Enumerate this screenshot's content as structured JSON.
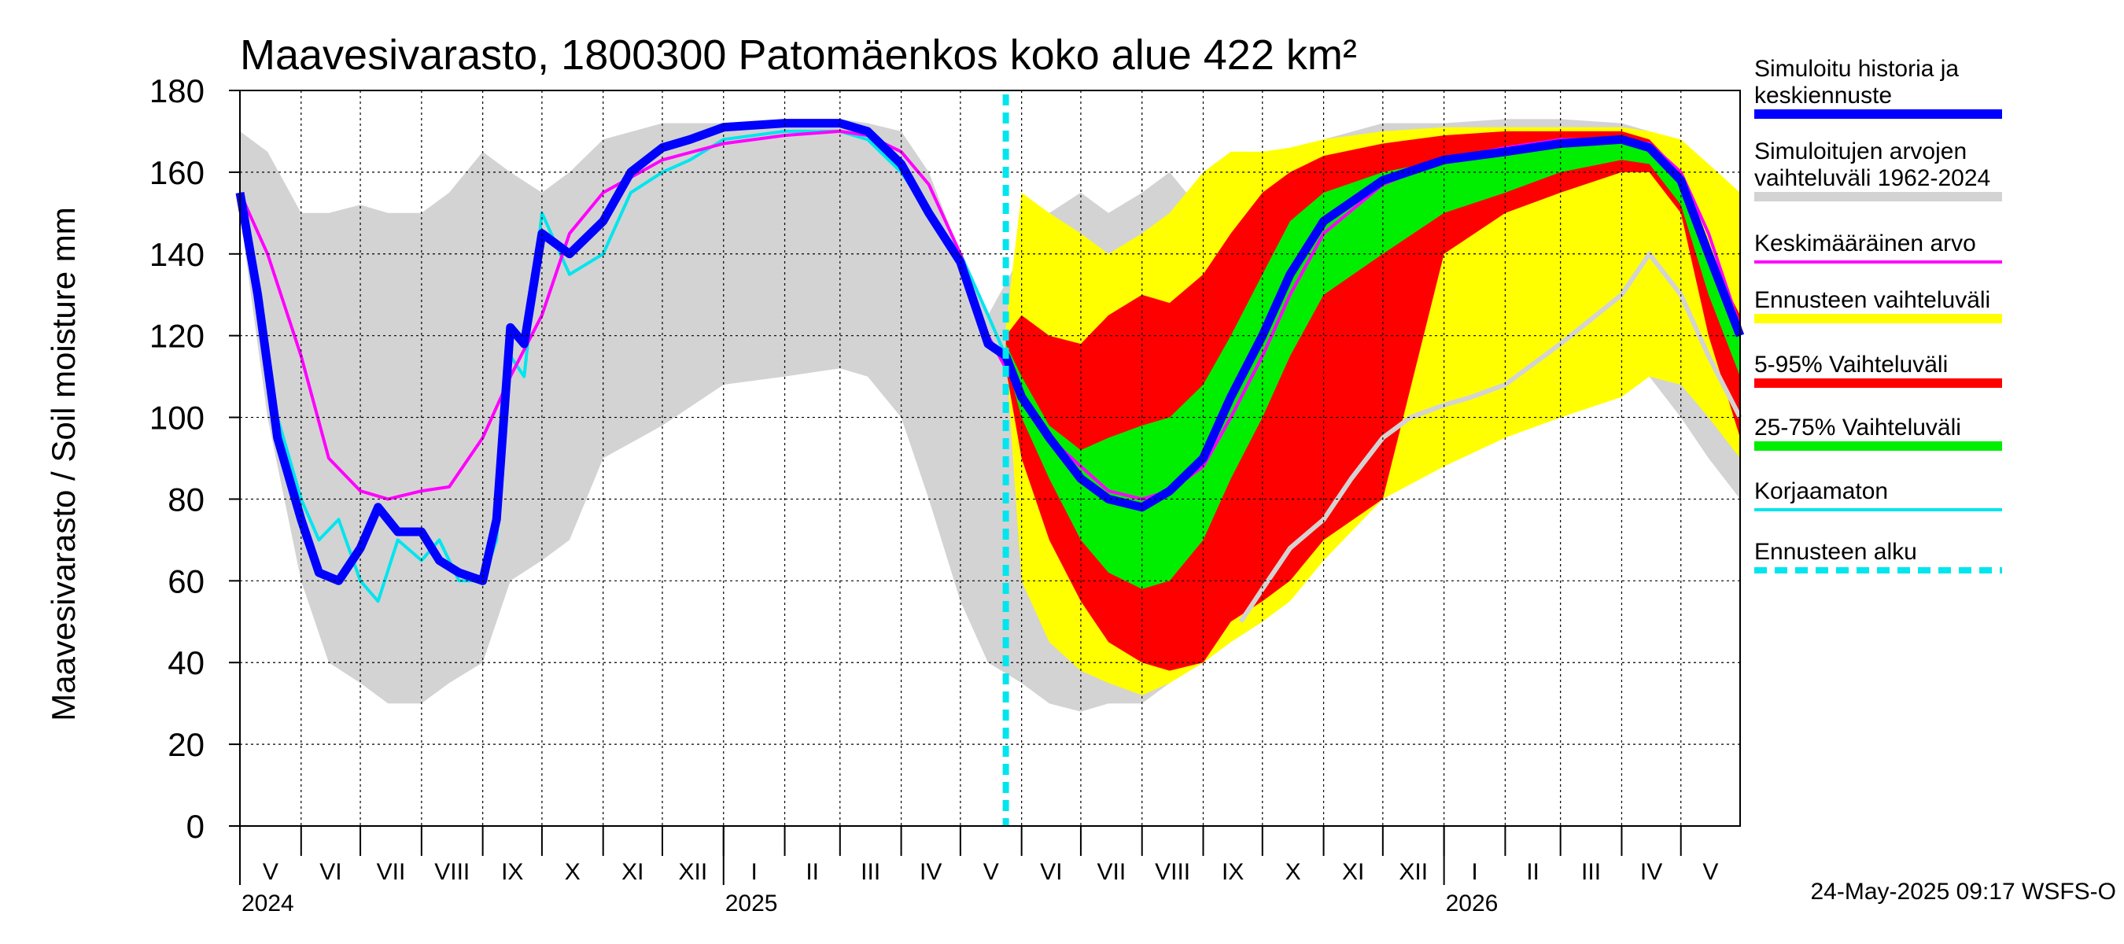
{
  "chart_data": {
    "type": "area",
    "title": "Maavesivarasto, 1800300 Patomäenkos koko alue 422 km²",
    "ylabel": "Maavesivarasto / Soil moisture   mm",
    "ylim": [
      0,
      180
    ],
    "yticks": [
      0,
      20,
      40,
      60,
      80,
      100,
      120,
      140,
      160,
      180
    ],
    "xlim": [
      "2024-05-01",
      "2026-05-31"
    ],
    "forecast_start": "2025-05-24",
    "grid": true,
    "legend_position": "right",
    "month_labels": [
      {
        "label": "V",
        "start": "2024-05-01",
        "end": "2024-06-01"
      },
      {
        "label": "VI",
        "start": "2024-06-01",
        "end": "2024-07-01"
      },
      {
        "label": "VII",
        "start": "2024-07-01",
        "end": "2024-08-01"
      },
      {
        "label": "VIII",
        "start": "2024-08-01",
        "end": "2024-09-01"
      },
      {
        "label": "IX",
        "start": "2024-09-01",
        "end": "2024-10-01"
      },
      {
        "label": "X",
        "start": "2024-10-01",
        "end": "2024-11-01"
      },
      {
        "label": "XI",
        "start": "2024-11-01",
        "end": "2024-12-01"
      },
      {
        "label": "XII",
        "start": "2024-12-01",
        "end": "2025-01-01"
      },
      {
        "label": "I",
        "start": "2025-01-01",
        "end": "2025-02-01"
      },
      {
        "label": "II",
        "start": "2025-02-01",
        "end": "2025-03-01"
      },
      {
        "label": "III",
        "start": "2025-03-01",
        "end": "2025-04-01"
      },
      {
        "label": "IV",
        "start": "2025-04-01",
        "end": "2025-05-01"
      },
      {
        "label": "V",
        "start": "2025-05-01",
        "end": "2025-06-01"
      },
      {
        "label": "VI",
        "start": "2025-06-01",
        "end": "2025-07-01"
      },
      {
        "label": "VII",
        "start": "2025-07-01",
        "end": "2025-08-01"
      },
      {
        "label": "VIII",
        "start": "2025-08-01",
        "end": "2025-09-01"
      },
      {
        "label": "IX",
        "start": "2025-09-01",
        "end": "2025-10-01"
      },
      {
        "label": "X",
        "start": "2025-10-01",
        "end": "2025-11-01"
      },
      {
        "label": "XI",
        "start": "2025-11-01",
        "end": "2025-12-01"
      },
      {
        "label": "XII",
        "start": "2025-12-01",
        "end": "2026-01-01"
      },
      {
        "label": "I",
        "start": "2026-01-01",
        "end": "2026-02-01"
      },
      {
        "label": "II",
        "start": "2026-02-01",
        "end": "2026-03-01"
      },
      {
        "label": "III",
        "start": "2026-03-01",
        "end": "2026-04-01"
      },
      {
        "label": "IV",
        "start": "2026-04-01",
        "end": "2026-05-01"
      },
      {
        "label": "V",
        "start": "2026-05-01",
        "end": "2026-05-31"
      }
    ],
    "year_labels": [
      {
        "label": "2024",
        "date": "2024-05-01"
      },
      {
        "label": "2025",
        "date": "2025-01-01"
      },
      {
        "label": "2026",
        "date": "2026-01-01"
      }
    ],
    "series": [
      {
        "name": "Simuloitujen arvojen vaihteluväli 1962-2024",
        "kind": "band",
        "color": "#d3d3d3",
        "x": [
          "2024-05-01",
          "2024-05-15",
          "2024-06-01",
          "2024-06-15",
          "2024-07-01",
          "2024-07-15",
          "2024-08-01",
          "2024-08-15",
          "2024-09-01",
          "2024-09-15",
          "2024-10-01",
          "2024-10-15",
          "2024-11-01",
          "2024-12-01",
          "2025-01-01",
          "2025-02-01",
          "2025-03-01",
          "2025-03-15",
          "2025-04-01",
          "2025-04-15",
          "2025-05-01",
          "2025-05-15",
          "2025-06-01",
          "2025-06-15",
          "2025-07-01",
          "2025-07-15",
          "2025-08-01",
          "2025-08-15",
          "2025-09-01",
          "2025-09-15",
          "2025-10-01",
          "2025-10-15",
          "2025-11-01",
          "2025-12-01",
          "2026-01-01",
          "2026-02-01",
          "2026-03-01",
          "2026-04-01",
          "2026-04-15",
          "2026-05-01",
          "2026-05-15",
          "2026-05-31"
        ],
        "upper": [
          170,
          165,
          150,
          150,
          152,
          150,
          150,
          155,
          165,
          160,
          155,
          160,
          168,
          172,
          172,
          173,
          173,
          172,
          170,
          160,
          140,
          125,
          140,
          150,
          155,
          150,
          155,
          160,
          150,
          160,
          163,
          165,
          168,
          172,
          172,
          173,
          173,
          172,
          170,
          165,
          160,
          155
        ],
        "lower": [
          150,
          100,
          60,
          40,
          35,
          30,
          30,
          35,
          40,
          60,
          65,
          70,
          90,
          98,
          108,
          110,
          112,
          110,
          100,
          80,
          55,
          40,
          35,
          30,
          28,
          30,
          30,
          35,
          40,
          45,
          50,
          60,
          70,
          85,
          95,
          100,
          110,
          115,
          110,
          100,
          90,
          80
        ]
      },
      {
        "name": "Ennusteen vaihteluväli",
        "kind": "band",
        "color": "#ffff00",
        "x": [
          "2025-05-24",
          "2025-06-01",
          "2025-06-15",
          "2025-07-01",
          "2025-07-15",
          "2025-08-01",
          "2025-08-15",
          "2025-09-01",
          "2025-09-15",
          "2025-10-01",
          "2025-10-15",
          "2025-11-01",
          "2025-12-01",
          "2026-01-01",
          "2026-02-01",
          "2026-03-01",
          "2026-04-01",
          "2026-04-15",
          "2026-05-01",
          "2026-05-15",
          "2026-05-31"
        ],
        "upper": [
          122,
          155,
          150,
          145,
          140,
          145,
          150,
          160,
          165,
          165,
          166,
          168,
          170,
          171,
          171,
          171,
          171,
          170,
          168,
          162,
          155
        ],
        "lower": [
          115,
          60,
          45,
          38,
          35,
          32,
          35,
          40,
          45,
          50,
          55,
          65,
          80,
          88,
          95,
          100,
          105,
          110,
          108,
          100,
          90
        ]
      },
      {
        "name": "5-95% Vaihteluväli",
        "kind": "band",
        "color": "#ff0000",
        "x": [
          "2025-05-24",
          "2025-06-01",
          "2025-06-15",
          "2025-07-01",
          "2025-07-15",
          "2025-08-01",
          "2025-08-15",
          "2025-09-01",
          "2025-09-15",
          "2025-10-01",
          "2025-10-15",
          "2025-11-01",
          "2025-12-01",
          "2026-01-01",
          "2026-02-01",
          "2026-03-01",
          "2026-04-01",
          "2026-04-15",
          "2026-05-01",
          "2026-05-15",
          "2026-05-31"
        ],
        "upper": [
          120,
          125,
          120,
          118,
          125,
          130,
          128,
          135,
          145,
          155,
          160,
          164,
          167,
          169,
          170,
          170,
          170,
          168,
          160,
          140,
          125
        ],
        "lower": [
          112,
          90,
          70,
          55,
          45,
          40,
          38,
          40,
          50,
          55,
          60,
          70,
          80,
          140,
          150,
          155,
          160,
          160,
          150,
          120,
          95
        ]
      },
      {
        "name": "25-75% Vaihteluväli",
        "kind": "band",
        "color": "#00ee00",
        "x": [
          "2025-05-24",
          "2025-06-01",
          "2025-06-15",
          "2025-07-01",
          "2025-07-15",
          "2025-08-01",
          "2025-08-15",
          "2025-09-01",
          "2025-09-15",
          "2025-10-01",
          "2025-10-15",
          "2025-11-01",
          "2025-12-01",
          "2026-01-01",
          "2026-02-01",
          "2026-03-01",
          "2026-04-01",
          "2026-04-15",
          "2026-05-01",
          "2026-05-15",
          "2026-05-31"
        ],
        "upper": [
          118,
          110,
          98,
          92,
          95,
          98,
          100,
          108,
          120,
          135,
          148,
          155,
          160,
          163,
          165,
          167,
          168,
          166,
          158,
          138,
          120
        ],
        "lower": [
          114,
          100,
          85,
          70,
          62,
          58,
          60,
          70,
          85,
          100,
          115,
          130,
          140,
          150,
          155,
          160,
          163,
          162,
          152,
          130,
          110
        ]
      },
      {
        "name": "Korjaamaton",
        "kind": "line",
        "color": "#00e5ee",
        "x": [
          "2024-05-01",
          "2024-05-10",
          "2024-05-20",
          "2024-06-01",
          "2024-06-10",
          "2024-06-20",
          "2024-07-01",
          "2024-07-10",
          "2024-07-20",
          "2024-08-01",
          "2024-08-10",
          "2024-08-20",
          "2024-09-01",
          "2024-09-08",
          "2024-09-15",
          "2024-09-22",
          "2024-10-01",
          "2024-10-15",
          "2024-11-01",
          "2024-11-15",
          "2024-12-01",
          "2024-12-15",
          "2025-01-01",
          "2025-02-01",
          "2025-03-01",
          "2025-03-15",
          "2025-04-01",
          "2025-04-15",
          "2025-05-01",
          "2025-05-15",
          "2025-05-24"
        ],
        "y": [
          155,
          130,
          100,
          80,
          70,
          75,
          60,
          55,
          70,
          65,
          70,
          60,
          60,
          70,
          115,
          110,
          150,
          135,
          140,
          155,
          160,
          163,
          168,
          170,
          170,
          168,
          160,
          150,
          140,
          125,
          115
        ]
      },
      {
        "name": "Keskimääräinen arvo",
        "kind": "line",
        "color": "#ff00ff",
        "x": [
          "2024-05-01",
          "2024-05-15",
          "2024-06-01",
          "2024-06-15",
          "2024-07-01",
          "2024-07-15",
          "2024-08-01",
          "2024-08-15",
          "2024-09-01",
          "2024-09-15",
          "2024-10-01",
          "2024-10-15",
          "2024-11-01",
          "2024-12-01",
          "2025-01-01",
          "2025-02-01",
          "2025-03-01",
          "2025-03-15",
          "2025-04-01",
          "2025-04-15",
          "2025-05-01",
          "2025-05-15",
          "2025-06-01",
          "2025-06-15",
          "2025-07-01",
          "2025-07-15",
          "2025-08-01",
          "2025-08-15",
          "2025-09-01",
          "2025-09-15",
          "2025-10-01",
          "2025-10-15",
          "2025-11-01",
          "2025-12-01",
          "2026-01-01",
          "2026-02-01",
          "2026-03-01",
          "2026-04-01",
          "2026-04-15",
          "2026-05-01",
          "2026-05-15",
          "2026-05-31"
        ],
        "y": [
          155,
          140,
          115,
          90,
          82,
          80,
          82,
          83,
          95,
          110,
          125,
          145,
          155,
          163,
          167,
          169,
          170,
          169,
          165,
          157,
          140,
          120,
          105,
          95,
          88,
          82,
          80,
          82,
          88,
          100,
          115,
          130,
          145,
          157,
          163,
          166,
          168,
          168,
          167,
          160,
          145,
          122
        ]
      },
      {
        "name": "Simuloitu historia ja keskiennuste",
        "kind": "line",
        "color": "#0000ff",
        "x": [
          "2024-05-01",
          "2024-05-10",
          "2024-05-20",
          "2024-06-01",
          "2024-06-10",
          "2024-06-20",
          "2024-07-01",
          "2024-07-10",
          "2024-07-20",
          "2024-08-01",
          "2024-08-10",
          "2024-08-20",
          "2024-09-01",
          "2024-09-08",
          "2024-09-15",
          "2024-09-22",
          "2024-10-01",
          "2024-10-15",
          "2024-11-01",
          "2024-11-15",
          "2024-12-01",
          "2024-12-15",
          "2025-01-01",
          "2025-02-01",
          "2025-03-01",
          "2025-03-15",
          "2025-04-01",
          "2025-04-15",
          "2025-05-01",
          "2025-05-15",
          "2025-05-24",
          "2025-06-01",
          "2025-06-15",
          "2025-07-01",
          "2025-07-15",
          "2025-08-01",
          "2025-08-15",
          "2025-09-01",
          "2025-09-15",
          "2025-10-01",
          "2025-10-15",
          "2025-11-01",
          "2025-12-01",
          "2026-01-01",
          "2026-02-01",
          "2026-03-01",
          "2026-04-01",
          "2026-04-15",
          "2026-05-01",
          "2026-05-15",
          "2026-05-31"
        ],
        "y": [
          155,
          130,
          95,
          75,
          62,
          60,
          68,
          78,
          72,
          72,
          65,
          62,
          60,
          75,
          122,
          118,
          145,
          140,
          148,
          160,
          166,
          168,
          171,
          172,
          172,
          170,
          162,
          150,
          138,
          118,
          115,
          105,
          95,
          85,
          80,
          78,
          82,
          90,
          105,
          120,
          135,
          148,
          158,
          163,
          165,
          167,
          168,
          166,
          158,
          140,
          120
        ]
      },
      {
        "name": "",
        "kind": "line",
        "color": "#d3d3d3",
        "x": [
          "2025-09-20",
          "2025-10-01",
          "2025-10-15",
          "2025-11-01",
          "2025-11-15",
          "2025-12-01",
          "2025-12-15",
          "2026-01-01",
          "2026-01-15",
          "2026-02-01",
          "2026-03-01",
          "2026-04-01",
          "2026-04-15",
          "2026-05-01",
          "2026-05-15",
          "2026-05-31"
        ],
        "y": [
          50,
          58,
          68,
          75,
          85,
          95,
          100,
          103,
          105,
          108,
          118,
          130,
          140,
          130,
          115,
          100
        ]
      }
    ],
    "legend": [
      {
        "label": "Simuloitu historia ja keskiennuste",
        "color": "#0000ff",
        "style": "solid"
      },
      {
        "label": "Simuloitujen arvojen vaihteluväli 1962-2024",
        "color": "#d3d3d3",
        "style": "solid"
      },
      {
        "label": "Keskimääräinen arvo",
        "color": "#ff00ff",
        "style": "thin"
      },
      {
        "label": "Ennusteen vaihteluväli",
        "color": "#ffff00",
        "style": "solid"
      },
      {
        "label": "5-95% Vaihteluväli",
        "color": "#ff0000",
        "style": "solid"
      },
      {
        "label": "25-75% Vaihteluväli",
        "color": "#00ee00",
        "style": "solid"
      },
      {
        "label": "Korjaamaton",
        "color": "#00e5ee",
        "style": "thin"
      },
      {
        "label": "Ennusteen alku",
        "color": "#00e5ee",
        "style": "dashed"
      }
    ],
    "footer": "24-May-2025 09:17 WSFS-O"
  }
}
